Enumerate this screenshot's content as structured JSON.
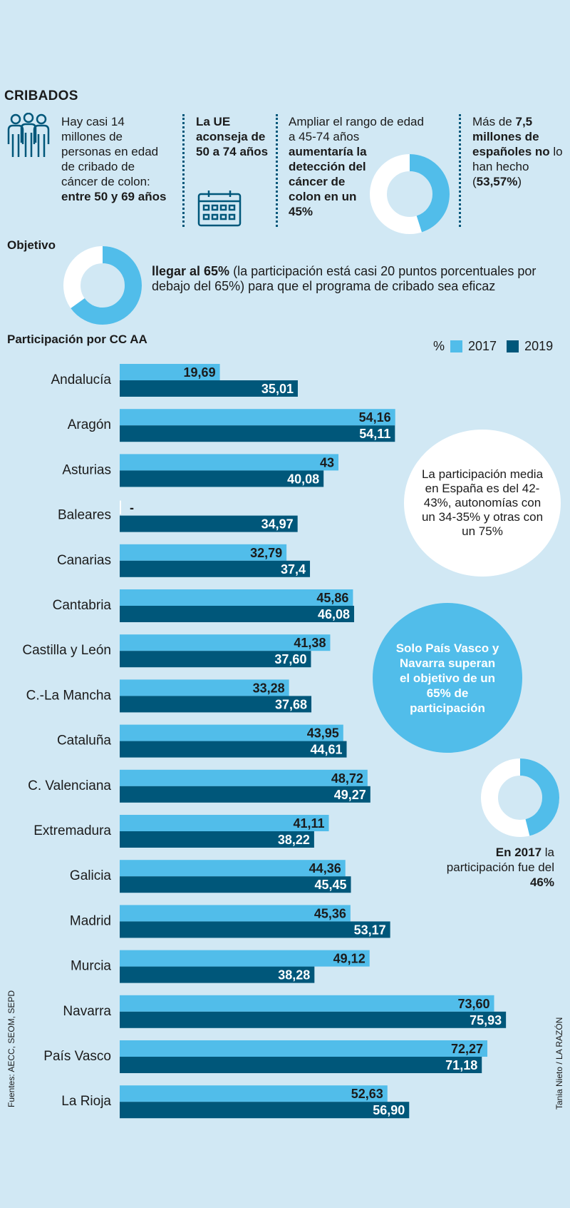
{
  "header": {
    "title": "CRIBADOS",
    "col1": {
      "text": "Hay casi 14 millones de personas en edad de cribado de cáncer de colon: ",
      "bold": "entre 50 y 69 años"
    },
    "col2": {
      "bold": "La UE aconseja de 50 a 74 años"
    },
    "col3": {
      "text": "Ampliar el rango de edad a 45-74 años ",
      "bold": "aumentaría la detección del cáncer de colon en un 45%",
      "donut_value": 45
    },
    "col4": {
      "t1": "Más de ",
      "b1": "7,5 millones de españoles no",
      "t2": " lo han hecho (",
      "b2": "53,57%",
      "t3": ")"
    }
  },
  "objective": {
    "label": "Objetivo",
    "bold": "llegar al 65%",
    "text": " (la participación está casi 20 puntos porcentuales por debajo del 65%) para que el programa de cribado sea eficaz",
    "donut_value": 65
  },
  "notes": {
    "white_bubble": "La participación media en España es del 42-43%, autonomías con un 34-35% y otras con un 75%",
    "blue_bubble": "Solo País Vasco y Navarra superan el objetivo de un 65% de participación",
    "donut_value": 46,
    "donut_caption_b1": "En 2017",
    "donut_caption_t1": " la participación fue del ",
    "donut_caption_b2": "46%"
  },
  "sources": "Fuentes: AECC, SEOM, SEPD",
  "credit": "Tania Nieto / LA RAZÓN",
  "colors": {
    "c2017": "#51bdea",
    "c2019": "#00577a",
    "background": "#d1e8f4"
  },
  "chart_data": {
    "type": "bar",
    "title": "Participación por CC AA",
    "unit": "%",
    "orientation": "horizontal",
    "xlim": [
      0,
      80
    ],
    "categories": [
      "Andalucía",
      "Aragón",
      "Asturias",
      "Baleares",
      "Canarias",
      "Cantabria",
      "Castilla y León",
      "C.-La Mancha",
      "Cataluña",
      "C. Valenciana",
      "Extremadura",
      "Galicia",
      "Madrid",
      "Murcia",
      "Navarra",
      "País Vasco",
      "La Rioja"
    ],
    "series": [
      {
        "name": "2017",
        "values": [
          19.69,
          54.16,
          43,
          null,
          32.79,
          45.86,
          41.38,
          33.28,
          43.95,
          48.72,
          41.11,
          44.36,
          45.36,
          49.12,
          73.6,
          72.27,
          52.63
        ],
        "labels": [
          "19,69",
          "54,16",
          "43",
          "-",
          "32,79",
          "45,86",
          "41,38",
          "33,28",
          "43,95",
          "48,72",
          "41,11",
          "44,36",
          "45,36",
          "49,12",
          "73,60",
          "72,27",
          "52,63"
        ]
      },
      {
        "name": "2019",
        "values": [
          35.01,
          54.11,
          40.08,
          34.97,
          37.4,
          46.08,
          37.6,
          37.68,
          44.61,
          49.27,
          38.22,
          45.45,
          53.17,
          38.28,
          75.93,
          71.18,
          56.9
        ],
        "labels": [
          "35,01",
          "54,11",
          "40,08",
          "34,97",
          "37,4",
          "46,08",
          "37,60",
          "37,68",
          "44,61",
          "49,27",
          "38,22",
          "45,45",
          "53,17",
          "38,28",
          "75,93",
          "71,18",
          "56,90"
        ]
      }
    ]
  }
}
